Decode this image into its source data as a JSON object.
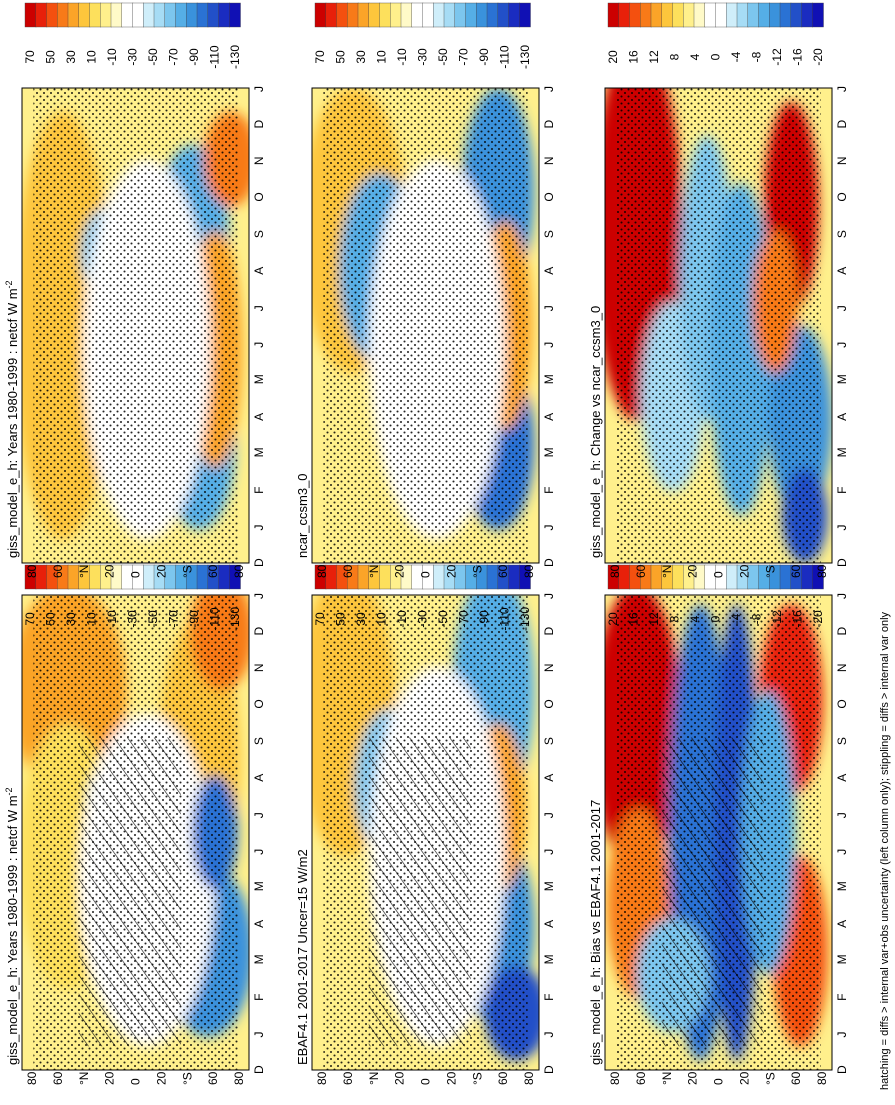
{
  "footnote": "hatching = diffs > internal var+obs uncertainty (left column only); stippling = diffs > internal var only",
  "palettes": {
    "abs": [
      "#cc0000",
      "#e8200a",
      "#f4500f",
      "#f87a18",
      "#fba428",
      "#fdc63c",
      "#fde05c",
      "#fff08c",
      "#fffac8",
      "#ffffff",
      "#ffffff",
      "#cfeefa",
      "#a6dcf5",
      "#7cc6ee",
      "#55aee6",
      "#3a92dc",
      "#2a72d4",
      "#2250c8",
      "#1a2cc0",
      "#1010b4"
    ],
    "diff": [
      "#cc0000",
      "#e8200a",
      "#f4500f",
      "#f87a18",
      "#fba428",
      "#fdc63c",
      "#fde05c",
      "#fff08c",
      "#fffac8",
      "#ffffff",
      "#ffffff",
      "#cfeefa",
      "#a6dcf5",
      "#7cc6ee",
      "#55aee6",
      "#3a92dc",
      "#2a72d4",
      "#2250c8",
      "#1a2cc0",
      "#1010b4"
    ]
  },
  "chart_data": [
    {
      "type": "heatmap",
      "title": "giss_model_e_h: Years 1980-1999 : netcf W m",
      "title_sup": "-2",
      "x": [
        "D",
        "J",
        "F",
        "M",
        "A",
        "M",
        "J",
        "J",
        "A",
        "S",
        "O",
        "N",
        "D",
        "J"
      ],
      "y": [
        "80",
        "60",
        "°N",
        "20",
        "0",
        "20",
        "°S",
        "60",
        "80"
      ],
      "colorbar": [
        "70",
        "50",
        "30",
        "10",
        "-10",
        "-30",
        "-50",
        "-70",
        "-90",
        "-110",
        "-130"
      ],
      "palette": "abs",
      "hatching": true,
      "stippling": true
    },
    {
      "type": "heatmap",
      "title": "giss_model_e_h: Years 1980-1999 : netcf W m",
      "title_sup": "-2",
      "x": [
        "D",
        "J",
        "F",
        "M",
        "A",
        "M",
        "J",
        "J",
        "A",
        "S",
        "O",
        "N",
        "D",
        "J"
      ],
      "y": [
        "80",
        "60",
        "°N",
        "20",
        "0",
        "20",
        "°S",
        "60",
        "80"
      ],
      "colorbar": [
        "70",
        "50",
        "30",
        "10",
        "-10",
        "-30",
        "-50",
        "-70",
        "-90",
        "-110",
        "-130"
      ],
      "palette": "abs",
      "hatching": false,
      "stippling": true
    },
    {
      "type": "heatmap",
      "title": "EBAF4.1 2001-2017 Uncer=15 W/m2",
      "x": [
        "D",
        "J",
        "F",
        "M",
        "A",
        "M",
        "J",
        "J",
        "A",
        "S",
        "O",
        "N",
        "D",
        "J"
      ],
      "y": [
        "80",
        "60",
        "°N",
        "20",
        "0",
        "20",
        "°S",
        "60",
        "80"
      ],
      "colorbar": [
        "70",
        "50",
        "30",
        "10",
        "-10",
        "-30",
        "-50",
        "-70",
        "-90",
        "-110",
        "-130"
      ],
      "palette": "abs",
      "hatching": true,
      "stippling": true
    },
    {
      "type": "heatmap",
      "title": "ncar_ccsm3_0",
      "x": [
        "D",
        "J",
        "F",
        "M",
        "A",
        "M",
        "J",
        "J",
        "A",
        "S",
        "O",
        "N",
        "D",
        "J"
      ],
      "y": [
        "80",
        "60",
        "°N",
        "20",
        "0",
        "20",
        "°S",
        "60",
        "80"
      ],
      "colorbar": [
        "70",
        "50",
        "30",
        "10",
        "-10",
        "-30",
        "-50",
        "-70",
        "-90",
        "-110",
        "-130"
      ],
      "palette": "abs",
      "hatching": false,
      "stippling": true
    },
    {
      "type": "heatmap",
      "title": "giss_model_e_h: Bias vs EBAF4.1 2001-2017",
      "x": [
        "D",
        "J",
        "F",
        "M",
        "A",
        "M",
        "J",
        "J",
        "A",
        "S",
        "O",
        "N",
        "D",
        "J"
      ],
      "y": [
        "80",
        "60",
        "°N",
        "20",
        "0",
        "20",
        "°S",
        "60",
        "80"
      ],
      "colorbar": [
        "20",
        "16",
        "12",
        "8",
        "4",
        "0",
        "-4",
        "-8",
        "-12",
        "-16",
        "-20"
      ],
      "palette": "diff",
      "hatching": true,
      "stippling": true
    },
    {
      "type": "heatmap",
      "title": "giss_model_e_h: Change vs ncar_ccsm3_0",
      "x": [
        "D",
        "J",
        "F",
        "M",
        "A",
        "M",
        "J",
        "J",
        "A",
        "S",
        "O",
        "N",
        "D",
        "J"
      ],
      "y": [
        "80",
        "60",
        "°N",
        "20",
        "0",
        "20",
        "°S",
        "60",
        "80"
      ],
      "colorbar": [
        "20",
        "16",
        "12",
        "8",
        "4",
        "0",
        "-4",
        "-8",
        "-12",
        "-16",
        "-20"
      ],
      "palette": "diff",
      "hatching": false,
      "stippling": true
    }
  ]
}
